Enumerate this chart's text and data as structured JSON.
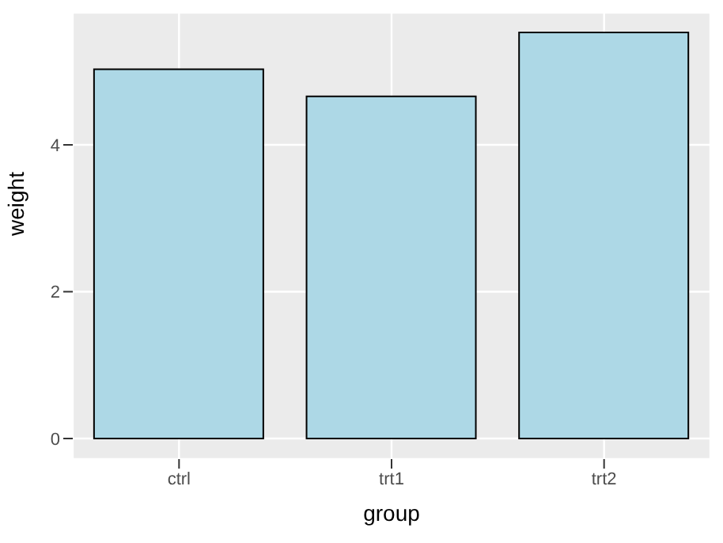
{
  "chart_data": {
    "type": "bar",
    "xlabel": "group",
    "ylabel": "weight",
    "categories": [
      "ctrl",
      "trt1",
      "trt2"
    ],
    "values": [
      5.03,
      4.66,
      5.53
    ],
    "color": "#add8e6",
    "ylim": [
      -0.28,
      5.8
    ],
    "yticks": [
      0,
      2,
      4
    ],
    "grid": true
  }
}
